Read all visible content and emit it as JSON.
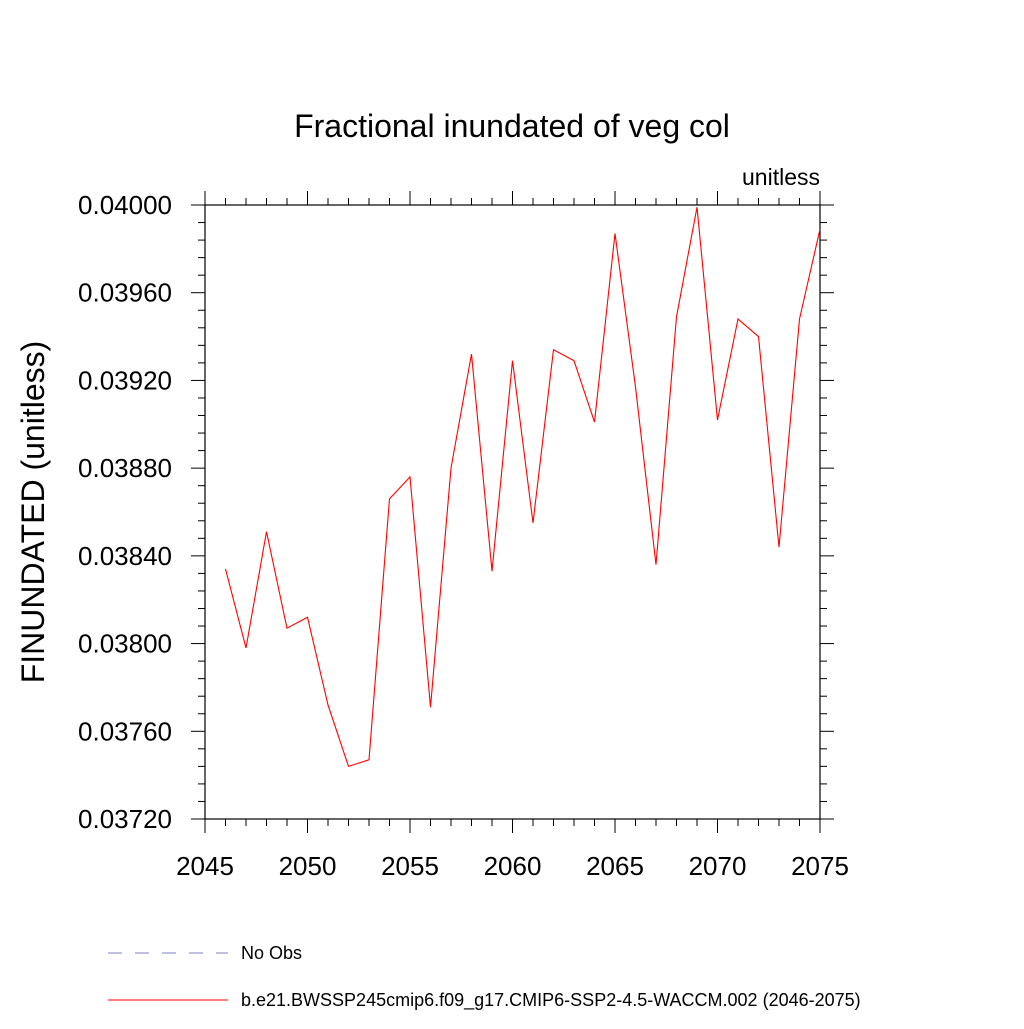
{
  "chart_data": {
    "type": "line",
    "title": "Fractional inundated of veg col",
    "units_label": "unitless",
    "ylabel": "FINUNDATED  (unitless)",
    "xlabel": "",
    "xlim": [
      2045,
      2075
    ],
    "ylim": [
      0.0372,
      0.04
    ],
    "x_ticks": [
      2045,
      2050,
      2055,
      2060,
      2065,
      2070,
      2075
    ],
    "x_tick_labels": [
      "2045",
      "2050",
      "2055",
      "2060",
      "2065",
      "2070",
      "2075"
    ],
    "y_ticks": [
      0.0372,
      0.0376,
      0.038,
      0.0384,
      0.0388,
      0.0392,
      0.0396,
      0.04
    ],
    "y_tick_labels": [
      "0.03720",
      "0.03760",
      "0.03800",
      "0.03840",
      "0.03880",
      "0.03920",
      "0.03960",
      "0.04000"
    ],
    "grid": false,
    "legend_position": "bottom",
    "series": [
      {
        "name": "b.e21.BWSSP245cmip6.f09_g17.CMIP6-SSP2-4.5-WACCM.002 (2046-2075)",
        "color": "#ff0000",
        "style": "solid",
        "x": [
          2046,
          2047,
          2048,
          2049,
          2050,
          2051,
          2052,
          2053,
          2054,
          2055,
          2056,
          2057,
          2058,
          2059,
          2060,
          2061,
          2062,
          2063,
          2064,
          2065,
          2066,
          2067,
          2068,
          2069,
          2070,
          2071,
          2072,
          2073,
          2074,
          2075
        ],
        "values": [
          0.03834,
          0.03798,
          0.03851,
          0.03807,
          0.03812,
          0.03772,
          0.03744,
          0.03747,
          0.03866,
          0.03876,
          0.03771,
          0.0388,
          0.03932,
          0.03833,
          0.03929,
          0.03855,
          0.03934,
          0.03929,
          0.03901,
          0.03987,
          0.03917,
          0.03836,
          0.03949,
          0.03999,
          0.03902,
          0.03948,
          0.0394,
          0.03844,
          0.03948,
          0.03989
        ]
      }
    ],
    "legend": [
      {
        "label": "No Obs",
        "color": "#8080c0",
        "style": "dashed"
      },
      {
        "label": "b.e21.BWSSP245cmip6.f09_g17.CMIP6-SSP2-4.5-WACCM.002 (2046-2075)",
        "color": "#ff0000",
        "style": "solid"
      }
    ]
  }
}
